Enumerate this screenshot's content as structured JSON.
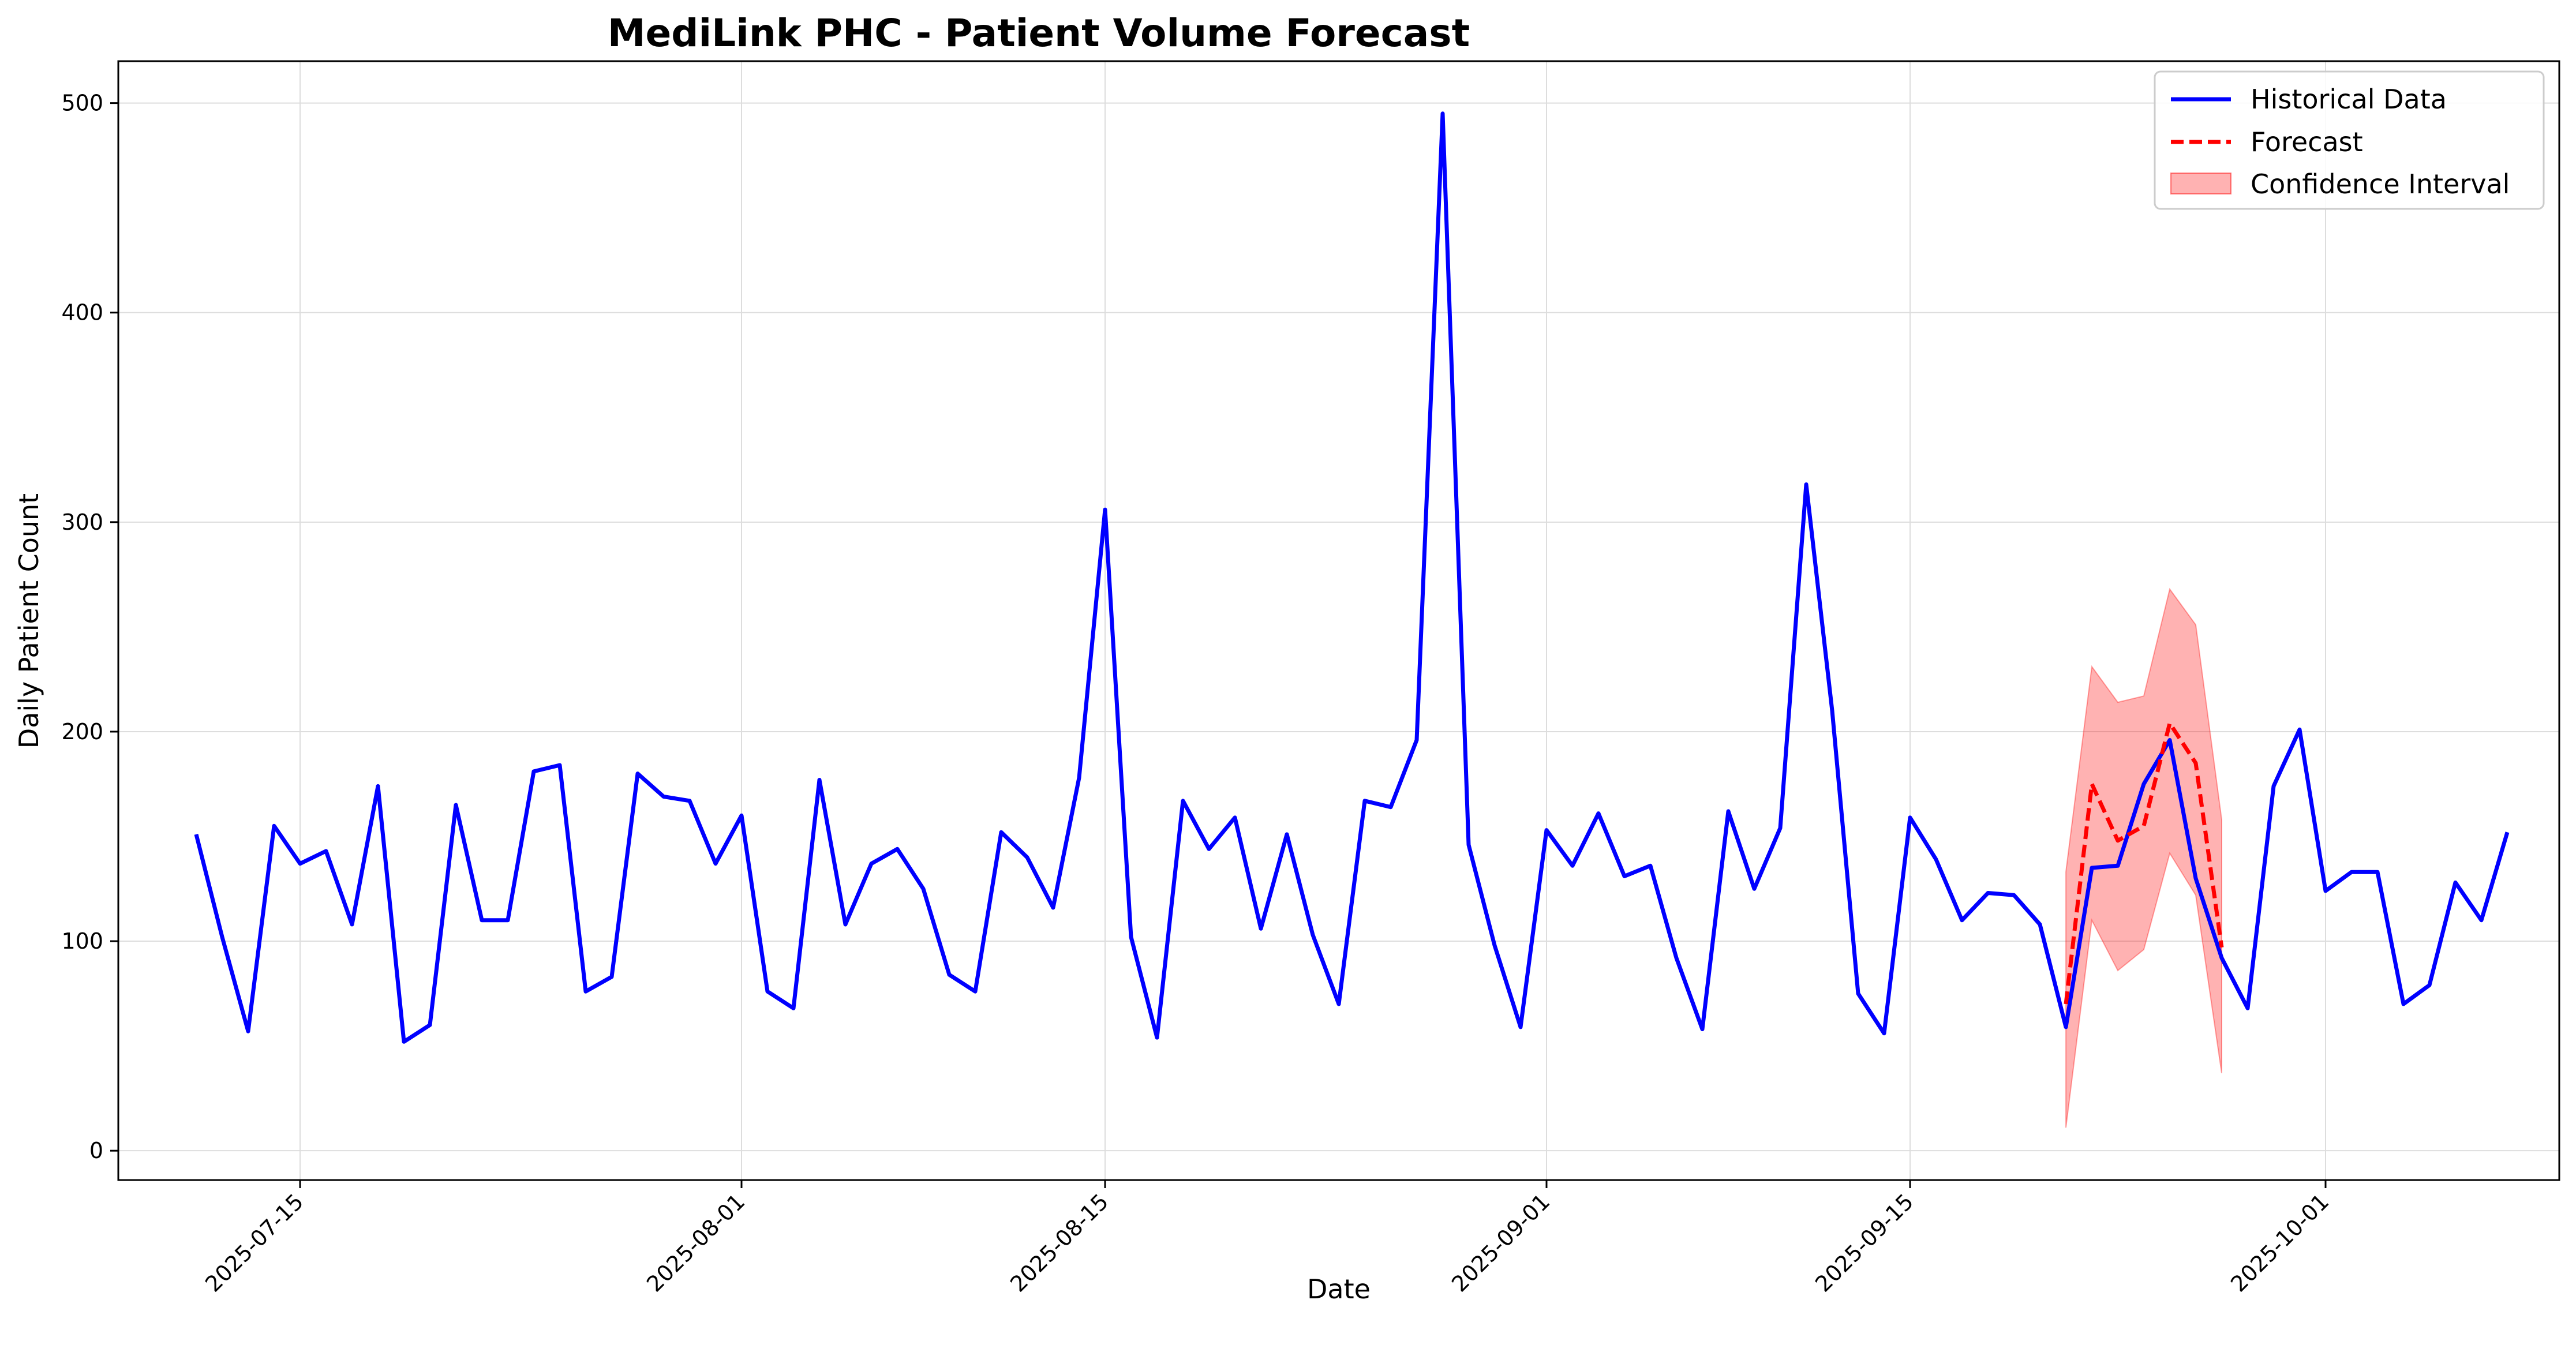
{
  "chart_data": {
    "type": "line",
    "title": "MediLink PHC - Patient Volume Forecast",
    "xlabel": "Date",
    "ylabel": "Daily Patient Count",
    "x_axis_type": "date",
    "xlim": [
      "2025-07-08",
      "2025-10-10"
    ],
    "ylim": [
      -14,
      520
    ],
    "x_ticks": [
      "2025-07-15",
      "2025-08-01",
      "2025-08-15",
      "2025-09-01",
      "2025-09-15",
      "2025-10-01"
    ],
    "y_ticks": [
      0,
      100,
      200,
      300,
      400,
      500
    ],
    "grid": true,
    "legend_position": "top-right",
    "series": [
      {
        "name": "Historical Data",
        "style": "solid",
        "color": "#0000ff",
        "points": [
          [
            "2025-07-11",
            151
          ],
          [
            "2025-07-12",
            102
          ],
          [
            "2025-07-13",
            57
          ],
          [
            "2025-07-14",
            155
          ],
          [
            "2025-07-15",
            137
          ],
          [
            "2025-07-16",
            143
          ],
          [
            "2025-07-17",
            108
          ],
          [
            "2025-07-18",
            174
          ],
          [
            "2025-07-19",
            52
          ],
          [
            "2025-07-20",
            60
          ],
          [
            "2025-07-21",
            165
          ],
          [
            "2025-07-22",
            110
          ],
          [
            "2025-07-23",
            110
          ],
          [
            "2025-07-24",
            181
          ],
          [
            "2025-07-25",
            184
          ],
          [
            "2025-07-26",
            76
          ],
          [
            "2025-07-27",
            83
          ],
          [
            "2025-07-28",
            180
          ],
          [
            "2025-07-29",
            169
          ],
          [
            "2025-07-30",
            167
          ],
          [
            "2025-07-31",
            137
          ],
          [
            "2025-08-01",
            160
          ],
          [
            "2025-08-02",
            76
          ],
          [
            "2025-08-03",
            68
          ],
          [
            "2025-08-04",
            177
          ],
          [
            "2025-08-05",
            108
          ],
          [
            "2025-08-06",
            137
          ],
          [
            "2025-08-07",
            144
          ],
          [
            "2025-08-08",
            125
          ],
          [
            "2025-08-09",
            84
          ],
          [
            "2025-08-10",
            76
          ],
          [
            "2025-08-11",
            152
          ],
          [
            "2025-08-12",
            140
          ],
          [
            "2025-08-13",
            116
          ],
          [
            "2025-08-14",
            178
          ],
          [
            "2025-08-15",
            306
          ],
          [
            "2025-08-16",
            102
          ],
          [
            "2025-08-17",
            54
          ],
          [
            "2025-08-18",
            167
          ],
          [
            "2025-08-19",
            144
          ],
          [
            "2025-08-20",
            159
          ],
          [
            "2025-08-21",
            106
          ],
          [
            "2025-08-22",
            151
          ],
          [
            "2025-08-23",
            103
          ],
          [
            "2025-08-24",
            70
          ],
          [
            "2025-08-25",
            167
          ],
          [
            "2025-08-26",
            164
          ],
          [
            "2025-08-27",
            196
          ],
          [
            "2025-08-28",
            495
          ],
          [
            "2025-08-29",
            146
          ],
          [
            "2025-08-30",
            98
          ],
          [
            "2025-08-31",
            59
          ],
          [
            "2025-09-01",
            153
          ],
          [
            "2025-09-02",
            136
          ],
          [
            "2025-09-03",
            161
          ],
          [
            "2025-09-04",
            131
          ],
          [
            "2025-09-05",
            136
          ],
          [
            "2025-09-06",
            92
          ],
          [
            "2025-09-07",
            58
          ],
          [
            "2025-09-08",
            162
          ],
          [
            "2025-09-09",
            125
          ],
          [
            "2025-09-10",
            154
          ],
          [
            "2025-09-11",
            318
          ],
          [
            "2025-09-12",
            210
          ],
          [
            "2025-09-13",
            75
          ],
          [
            "2025-09-14",
            56
          ],
          [
            "2025-09-15",
            159
          ],
          [
            "2025-09-16",
            139
          ],
          [
            "2025-09-17",
            110
          ],
          [
            "2025-09-18",
            123
          ],
          [
            "2025-09-19",
            122
          ],
          [
            "2025-09-20",
            108
          ],
          [
            "2025-09-21",
            59
          ],
          [
            "2025-09-22",
            135
          ],
          [
            "2025-09-23",
            136
          ],
          [
            "2025-09-24",
            175
          ],
          [
            "2025-09-25",
            196
          ],
          [
            "2025-09-26",
            130
          ],
          [
            "2025-09-27",
            92
          ],
          [
            "2025-09-28",
            68
          ],
          [
            "2025-09-29",
            174
          ],
          [
            "2025-09-30",
            201
          ],
          [
            "2025-10-01",
            124
          ],
          [
            "2025-10-02",
            133
          ],
          [
            "2025-10-03",
            133
          ],
          [
            "2025-10-04",
            70
          ],
          [
            "2025-10-05",
            79
          ],
          [
            "2025-10-06",
            128
          ],
          [
            "2025-10-07",
            110
          ],
          [
            "2025-10-08",
            152
          ]
        ]
      },
      {
        "name": "Forecast",
        "style": "dashed",
        "color": "#ff0000",
        "points": [
          [
            "2025-09-21",
            70
          ],
          [
            "2025-09-22",
            175
          ],
          [
            "2025-09-23",
            148
          ],
          [
            "2025-09-24",
            155
          ],
          [
            "2025-09-25",
            204
          ],
          [
            "2025-09-26",
            185
          ],
          [
            "2025-09-27",
            97
          ]
        ]
      },
      {
        "name": "Confidence Interval",
        "style": "band",
        "color": "#ff0000",
        "opacity": 0.3,
        "points": [
          [
            "2025-09-21",
            11,
            133
          ],
          [
            "2025-09-22",
            110,
            231
          ],
          [
            "2025-09-23",
            86,
            214
          ],
          [
            "2025-09-24",
            96,
            217
          ],
          [
            "2025-09-25",
            142,
            268
          ],
          [
            "2025-09-26",
            122,
            251
          ],
          [
            "2025-09-27",
            37,
            158
          ]
        ]
      }
    ]
  }
}
